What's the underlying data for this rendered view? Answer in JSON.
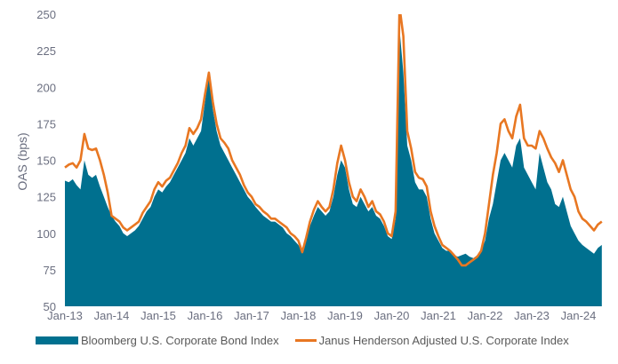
{
  "chart_data": {
    "type": "area",
    "title": "",
    "xlabel": "",
    "ylabel": "OAS (bps)",
    "ylim": [
      50,
      250
    ],
    "yticks": [
      "50",
      "75",
      "100",
      "125",
      "150",
      "175",
      "200",
      "225",
      "250"
    ],
    "xticks": [
      "Jan-13",
      "Jan-14",
      "Jan-15",
      "Jan-16",
      "Jan-17",
      "Jan-18",
      "Jan-19",
      "Jan-20",
      "Jan-21",
      "Jan-22",
      "Jan-23",
      "Jan-24"
    ],
    "x_frequency": "monthly",
    "grid": false,
    "legend_placement": "bottom",
    "series": [
      {
        "name": "Bloomberg U.S. Corporate Bond Index",
        "kind": "area",
        "color": "#00708f",
        "values_by_year": {
          "2013": [
            136,
            135,
            137,
            133,
            130,
            150,
            140,
            138,
            140,
            132,
            125,
            118
          ],
          "2014": [
            112,
            108,
            105,
            100,
            98,
            100,
            102,
            105,
            110,
            115,
            118,
            125
          ],
          "2015": [
            130,
            128,
            132,
            135,
            140,
            145,
            150,
            155,
            165,
            160,
            165,
            170
          ],
          "2016": [
            190,
            210,
            185,
            170,
            160,
            155,
            150,
            145,
            140,
            135,
            130,
            125
          ],
          "2017": [
            122,
            118,
            115,
            112,
            110,
            108,
            108,
            106,
            104,
            100,
            98,
            95
          ],
          "2018": [
            92,
            88,
            95,
            105,
            112,
            118,
            115,
            112,
            115,
            125,
            140,
            150
          ],
          "2019": [
            145,
            130,
            120,
            118,
            125,
            120,
            115,
            118,
            112,
            110,
            105,
            98
          ],
          "2020": [
            96,
            110,
            240,
            210,
            160,
            150,
            135,
            130,
            130,
            125,
            110,
            100
          ],
          "2021": [
            95,
            90,
            88,
            88,
            85,
            84,
            85,
            86,
            84,
            83,
            85,
            88
          ],
          "2022": [
            95,
            110,
            120,
            135,
            150,
            155,
            150,
            145,
            160,
            165,
            145,
            140
          ],
          "2023": [
            135,
            130,
            155,
            145,
            135,
            130,
            120,
            118,
            125,
            115,
            105,
            100
          ],
          "2024": [
            95,
            92,
            90,
            88,
            86,
            90,
            92
          ]
        }
      },
      {
        "name": "Janus Henderson Adjusted U.S. Corporate Index",
        "kind": "line",
        "color": "#e87722",
        "values_by_year": {
          "2013": [
            145,
            147,
            148,
            145,
            150,
            168,
            158,
            157,
            158,
            150,
            140,
            128
          ],
          "2014": [
            112,
            110,
            108,
            104,
            102,
            104,
            106,
            108,
            114,
            118,
            122,
            130
          ],
          "2015": [
            135,
            132,
            136,
            138,
            143,
            148,
            155,
            160,
            172,
            168,
            172,
            178
          ],
          "2016": [
            195,
            210,
            190,
            175,
            165,
            162,
            158,
            150,
            145,
            140,
            133,
            128
          ],
          "2017": [
            125,
            120,
            118,
            115,
            113,
            110,
            110,
            108,
            106,
            104,
            100,
            98
          ],
          "2018": [
            95,
            87,
            97,
            108,
            116,
            122,
            118,
            115,
            118,
            130,
            148,
            160
          ],
          "2019": [
            150,
            135,
            125,
            122,
            130,
            125,
            118,
            122,
            115,
            113,
            108,
            100
          ],
          "2020": [
            98,
            115,
            255,
            235,
            170,
            158,
            142,
            138,
            137,
            132,
            115,
            105
          ],
          "2021": [
            98,
            92,
            90,
            88,
            85,
            82,
            78,
            78,
            80,
            82,
            84,
            88
          ],
          "2022": [
            100,
            120,
            140,
            155,
            175,
            178,
            170,
            165,
            180,
            188,
            165,
            160
          ],
          "2023": [
            160,
            158,
            170,
            165,
            158,
            152,
            148,
            142,
            150,
            140,
            130,
            125
          ],
          "2024": [
            115,
            110,
            108,
            105,
            102,
            106,
            108
          ]
        }
      }
    ]
  }
}
